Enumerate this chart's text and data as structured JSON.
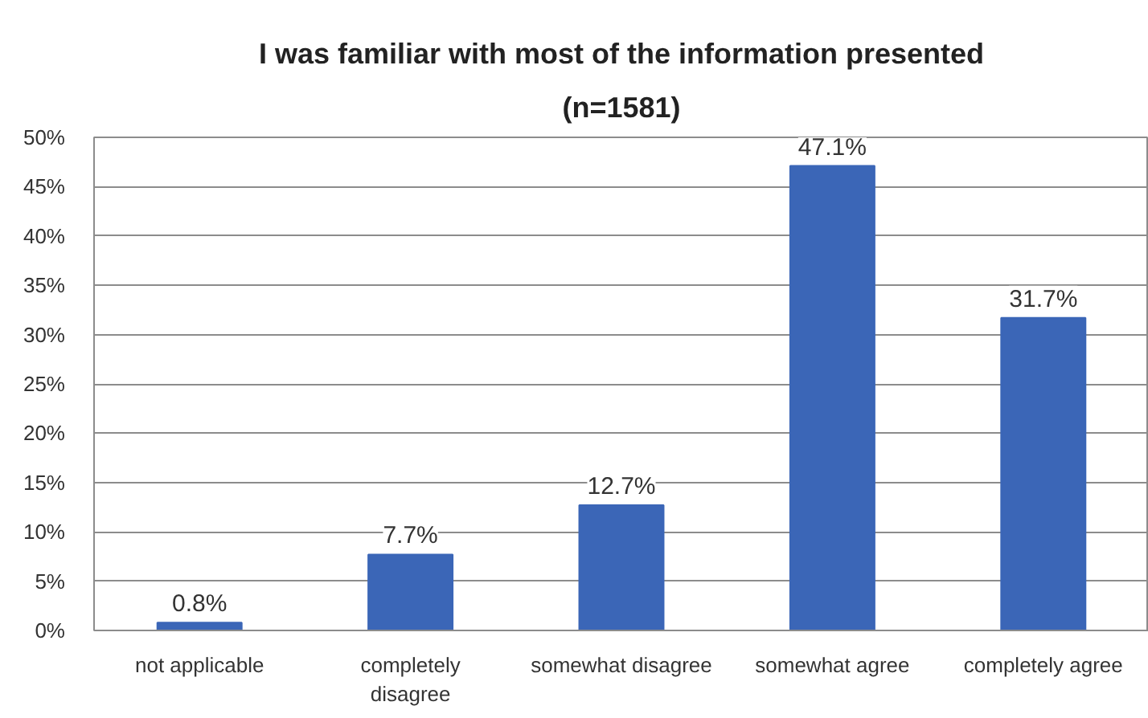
{
  "chart_data": {
    "type": "bar",
    "title": "I was familiar with most of the information presented",
    "subtitle": "(n=1581)",
    "categories": [
      "not applicable",
      "completely disagree",
      "somewhat disagree",
      "somewhat agree",
      "completely agree"
    ],
    "values": [
      0.8,
      7.7,
      12.7,
      47.1,
      31.7
    ],
    "value_labels": [
      "0.8%",
      "7.7%",
      "12.7%",
      "47.1%",
      "31.7%"
    ],
    "color": "#3b66b7",
    "ylim": [
      0,
      50
    ],
    "yticks": [
      {
        "value": 0,
        "label": "0%"
      },
      {
        "value": 5,
        "label": "5%"
      },
      {
        "value": 10,
        "label": "10%"
      },
      {
        "value": 15,
        "label": "15%"
      },
      {
        "value": 20,
        "label": "20%"
      },
      {
        "value": 25,
        "label": "25%"
      },
      {
        "value": 30,
        "label": "30%"
      },
      {
        "value": 35,
        "label": "35%"
      },
      {
        "value": 40,
        "label": "40%"
      },
      {
        "value": 45,
        "label": "45%"
      },
      {
        "value": 50,
        "label": "50%"
      }
    ],
    "grid": "y"
  }
}
